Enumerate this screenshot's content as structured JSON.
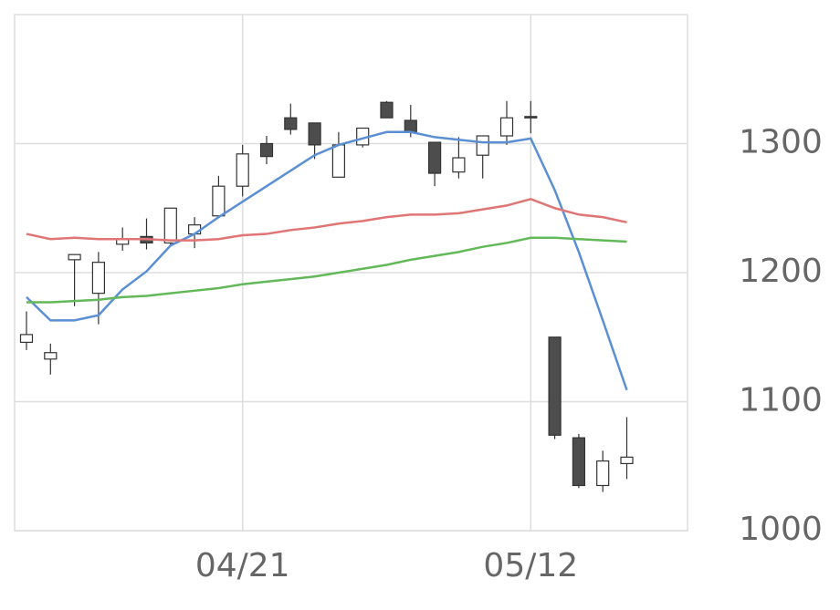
{
  "chart_data": {
    "type": "candlestick",
    "categories": [
      null,
      null,
      null,
      null,
      null,
      null,
      null,
      null,
      null,
      "04/21",
      null,
      null,
      null,
      null,
      null,
      null,
      null,
      null,
      null,
      null,
      null,
      "05/12",
      null,
      null,
      null,
      null
    ],
    "open": [
      1146,
      1133,
      1210,
      1184,
      1222,
      1228,
      1223,
      1230,
      1244,
      1267,
      1300,
      1320,
      1316,
      1274,
      1299,
      1332,
      1318,
      1301,
      1278,
      1291,
      1306,
      1321,
      1150,
      1072,
      1035,
      1052
    ],
    "high": [
      1170,
      1145,
      1214,
      1216,
      1235,
      1242,
      1250,
      1243,
      1275,
      1299,
      1306,
      1331,
      1316,
      1309,
      1312,
      1333,
      1330,
      1301,
      1305,
      1306,
      1333,
      1333,
      1150,
      1075,
      1062,
      1088
    ],
    "low": [
      1140,
      1121,
      1174,
      1160,
      1217,
      1218,
      1221,
      1219,
      1243,
      1259,
      1284,
      1307,
      1288,
      1274,
      1297,
      1320,
      1305,
      1267,
      1273,
      1273,
      1299,
      1308,
      1071,
      1033,
      1030,
      1040
    ],
    "close": [
      1152,
      1138,
      1214,
      1208,
      1226,
      1223,
      1250,
      1237,
      1267,
      1292,
      1290,
      1311,
      1299,
      1299,
      1312,
      1320,
      1309,
      1277,
      1289,
      1306,
      1320,
      1320,
      1074,
      1035,
      1054,
      1057
    ],
    "up_color": "#ffffff",
    "down_color": "#4d4d4d",
    "edge_color": "#333333",
    "series": [
      {
        "color": "#5b8fd4",
        "values": [
          1181,
          1163,
          1163,
          1167,
          1187,
          1201,
          1221,
          1230,
          1243,
          1255,
          1267,
          1279,
          1291,
          1299,
          1304,
          1309,
          1309,
          1305,
          1303,
          1301,
          1301,
          1304,
          1264,
          1216,
          1163,
          1109
        ]
      },
      {
        "color": "#e07576",
        "values": [
          1230,
          1226,
          1227,
          1226,
          1226,
          1226,
          1225,
          1225,
          1226,
          1229,
          1230,
          1233,
          1235,
          1238,
          1240,
          1243,
          1245,
          1245,
          1246,
          1249,
          1252,
          1257,
          1250,
          1245,
          1243,
          1239
        ]
      },
      {
        "color": "#63b95a",
        "values": [
          1177,
          1177,
          1178,
          1179,
          1181,
          1182,
          1184,
          1186,
          1188,
          1191,
          1193,
          1195,
          1197,
          1200,
          1203,
          1206,
          1210,
          1213,
          1216,
          1220,
          1223,
          1227,
          1227,
          1226,
          1225,
          1224
        ]
      }
    ],
    "ylim": [
      1000,
      1400
    ],
    "yticks": [
      1000,
      1100,
      1200,
      1300
    ],
    "grid": true
  }
}
